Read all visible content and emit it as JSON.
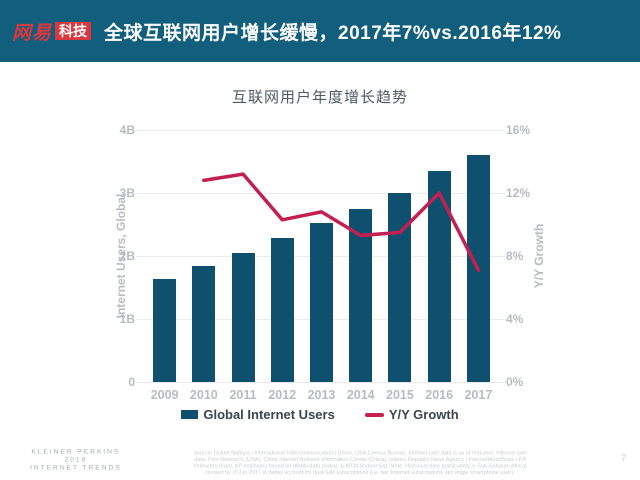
{
  "header": {
    "logo_text_1": "网易",
    "logo_text_2": "科技",
    "title": "全球互联网用户增长缓慢，2017年7%vs.2016年12%"
  },
  "chart_data": {
    "type": "bar",
    "title": "互联网用户年度增长趋势",
    "categories": [
      "2009",
      "2010",
      "2011",
      "2012",
      "2013",
      "2014",
      "2015",
      "2016",
      "2017"
    ],
    "series": [
      {
        "name": "Global Internet Users",
        "type": "bar",
        "axis": "left",
        "unit": "B",
        "values": [
          1.63,
          1.84,
          2.05,
          2.28,
          2.52,
          2.75,
          3.0,
          3.35,
          3.6
        ]
      },
      {
        "name": "Y/Y Growth",
        "type": "line",
        "axis": "right",
        "unit": "%",
        "values": [
          null,
          12.8,
          13.2,
          10.3,
          10.8,
          9.3,
          9.5,
          12.0,
          7.1
        ]
      }
    ],
    "ylabel_left": "Internet Users, Global",
    "ylabel_right": "Y/Y Growth",
    "ylim_left": [
      0,
      4
    ],
    "ylim_right": [
      0,
      16
    ],
    "y_left_ticks": [
      "4B",
      "3B",
      "2B",
      "1B",
      "0"
    ],
    "y_right_ticks": [
      "16%",
      "12%",
      "8%",
      "4%",
      "0%"
    ],
    "grid": true,
    "legend_position": "bottom"
  },
  "footer": {
    "brand_line1": "KLEINER PERKINS",
    "brand_line2": "2018",
    "brand_line3": "INTERNET TRENDS",
    "source": {
      "line1": "Source: United Nations / International Telecommunications Union, USA Census Bureau. Internet user data is as of mid-year. Internet user",
      "line2": "data: Pew Research (USA), China Internet Network Information Center (China), Islamic Republic News Agency / InternetWorldStats / KP",
      "line3": "estimates (Iran), KP estimates based on IAMAI data (India), & APJII (Indonesia). Note: Historical data (particularly in Sub-Saharan Africa)",
      "line4": "revised by ITU in 2017 to better account for dual-SIM subscriptions (i.e. two Internet subscriptions per single smartphone user)."
    },
    "page_number": "7"
  },
  "colors": {
    "header_bg": "#115e7d",
    "logo_red": "#d9383f",
    "bar": "#0f506f",
    "line": "#c32050",
    "grid": "#e9eaeb",
    "axis_text": "#b5bcc2",
    "chart_title": "#4d5a66",
    "legend_text": "#3a4550",
    "footer_text": "#c9ccd0",
    "kp_text": "#a8aeb4"
  }
}
